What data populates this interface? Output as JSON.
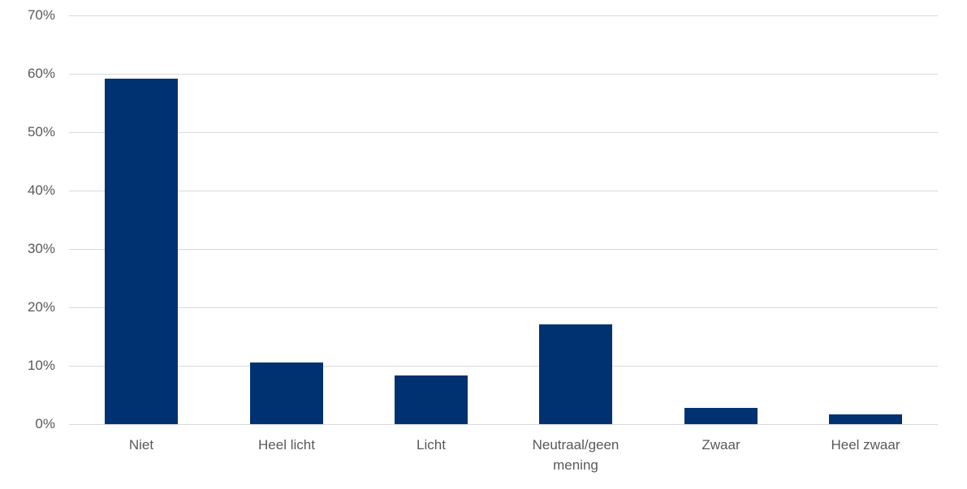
{
  "chart_data": {
    "type": "bar",
    "title": "",
    "xlabel": "",
    "ylabel": "",
    "categories": [
      "Niet",
      "Heel licht",
      "Licht",
      "Neutraal/geen mening",
      "Zwaar",
      "Heel zwaar"
    ],
    "values": [
      59.2,
      10.6,
      8.4,
      17.1,
      2.8,
      1.7
    ],
    "value_unit": "%",
    "ylim": [
      0,
      70
    ],
    "ytick_step": 10,
    "ytick_labels": [
      "0%",
      "10%",
      "20%",
      "30%",
      "40%",
      "50%",
      "60%",
      "70%"
    ],
    "grid": true,
    "legend_position": "none",
    "colors": {
      "bar": "#003272",
      "gridline": "#d9d9d9",
      "axis_line": "#d9d9d9",
      "tick_label_text": "#595959",
      "background": "#ffffff"
    }
  }
}
